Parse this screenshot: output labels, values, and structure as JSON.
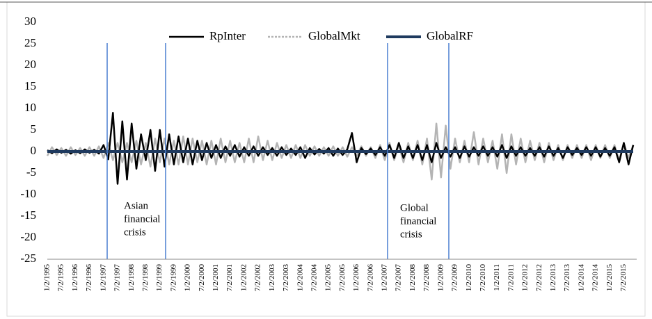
{
  "chart_data": {
    "type": "line",
    "categories": [
      "1/2/1995",
      null,
      null,
      "7/2/1995",
      null,
      null,
      "1/2/1996",
      null,
      null,
      "7/2/1996",
      null,
      null,
      "1/2/1997",
      null,
      null,
      "7/2/1997",
      null,
      null,
      "1/2/1998",
      null,
      null,
      "7/2/1998",
      null,
      null,
      "1/2/1999",
      null,
      null,
      "7/2/1999",
      null,
      null,
      "1/2/2000",
      null,
      null,
      "7/2/2000",
      null,
      null,
      "1/2/2001",
      null,
      null,
      "7/2/2001",
      null,
      null,
      "1/2/2002",
      null,
      null,
      "7/2/2002",
      null,
      null,
      "1/2/2003",
      null,
      null,
      "7/2/2003",
      null,
      null,
      "1/2/2004",
      null,
      null,
      "7/2/2004",
      null,
      null,
      "1/2/2005",
      null,
      null,
      "7/2/2005",
      null,
      null,
      "1/2/2006",
      null,
      null,
      "7/2/2006",
      null,
      null,
      "1/2/2007",
      null,
      null,
      "7/2/2007",
      null,
      null,
      "1/2/2008",
      null,
      null,
      "7/2/2008",
      null,
      null,
      "1/2/2009",
      null,
      null,
      "7/2/2009",
      null,
      null,
      "1/2/2010",
      null,
      null,
      "7/2/2010",
      null,
      null,
      "1/2/2011",
      null,
      null,
      "7/2/2011",
      null,
      null,
      "1/2/2012",
      null,
      null,
      "7/2/2012",
      null,
      null,
      "1/2/2013",
      null,
      null,
      "7/2/2013",
      null,
      null,
      "1/2/2014",
      null,
      null,
      "7/2/2014",
      null,
      null,
      "1/2/2015",
      null,
      null,
      "7/2/2015",
      null,
      null
    ],
    "series": [
      {
        "name": "RpInter",
        "color": "#000000",
        "width": 2.5,
        "style": "solid",
        "values": [
          0.3,
          -0.4,
          0.5,
          -0.3,
          0.4,
          -0.5,
          0.3,
          -0.4,
          0.5,
          -0.3,
          0.4,
          -0.5,
          1.5,
          -1.8,
          9,
          -7.5,
          7,
          -6.5,
          6.5,
          -4,
          4,
          -2,
          5,
          -4.5,
          5,
          -3.5,
          4,
          -3,
          3.5,
          -2.5,
          3,
          -3,
          2.5,
          -2,
          2,
          -1.5,
          1.5,
          -1.5,
          1.2,
          -1,
          1.5,
          -1.2,
          1,
          -1,
          1.2,
          -1,
          1,
          -0.8,
          0.8,
          -1,
          1,
          -0.8,
          0.7,
          -0.8,
          1,
          -1.5,
          0.8,
          -0.7,
          0.6,
          -0.5,
          0.8,
          -1,
          0.7,
          -0.8,
          0.5,
          4.3,
          -2.5,
          0.8,
          -0.6,
          0.7,
          -0.8,
          1,
          -1,
          1.5,
          -1.5,
          2,
          -1.5,
          1.2,
          -1.5,
          1.5,
          -2,
          1.5,
          -2.5,
          2,
          -1.5,
          1,
          -1.2,
          1,
          -1.5,
          1.2,
          -1.2,
          1,
          -1,
          1.2,
          -1,
          1,
          -1.2,
          1.5,
          -1.5,
          1.2,
          -1,
          1,
          -1,
          0.8,
          -1,
          1,
          -1.2,
          1.2,
          -1,
          0.8,
          -1.5,
          1,
          -0.8,
          0.8,
          -0.8,
          1,
          -1,
          1,
          -1.2,
          0.8,
          -1,
          1,
          -2.5,
          2,
          -3,
          1.5
        ]
      },
      {
        "name": "GlobalMkt",
        "color": "#b4b4b4",
        "width": 2.5,
        "style": "dotted",
        "values": [
          -1,
          1,
          -0.8,
          0.8,
          -1,
          1,
          -0.8,
          0.8,
          -1,
          1,
          -1,
          1.2,
          -1.5,
          2,
          -2,
          2,
          -2.5,
          2,
          -2.5,
          2.5,
          -3,
          2,
          -3.5,
          3,
          -2.5,
          3,
          -3,
          2.5,
          -3,
          3.5,
          -3,
          3,
          -2.5,
          2.5,
          -3,
          2.5,
          -3,
          3,
          -2.5,
          2.5,
          -2.5,
          2,
          -2.5,
          3,
          -2.5,
          3.5,
          -2,
          2.5,
          -2,
          2,
          -1.5,
          1.5,
          -1.5,
          1.5,
          -1.5,
          1.5,
          -1,
          1.2,
          -1,
          1,
          -1,
          1.2,
          -1,
          1,
          -1.2,
          1,
          -1,
          1.2,
          -1,
          1,
          -1.5,
          1.5,
          -2,
          2,
          -2,
          1.5,
          -2.5,
          2,
          -2,
          2.5,
          -3,
          3,
          -6.5,
          6.5,
          -6,
          6,
          -4,
          3,
          -2.5,
          2.5,
          -2.5,
          4.5,
          -3,
          3,
          -2.5,
          2.5,
          -4,
          4,
          -5,
          4,
          -3,
          3,
          -2.5,
          2.5,
          -2,
          2,
          -2.5,
          2,
          -2,
          1.5,
          -2,
          1.5,
          -1.5,
          1.5,
          -1.5,
          1.5,
          -2,
          1.5,
          -1.5,
          1.5,
          -1.5,
          1.5,
          -2,
          2,
          -1.5,
          1.5
        ]
      },
      {
        "name": "GlobalRF",
        "color": "#1f3a5f",
        "width": 4,
        "style": "solid",
        "values": [
          0,
          0,
          0,
          0,
          0,
          0,
          0,
          0,
          0,
          0,
          0,
          0,
          0,
          0,
          0,
          0,
          0,
          0,
          0,
          0,
          0,
          0,
          0,
          0,
          0,
          0,
          0,
          0,
          0,
          0,
          0,
          0,
          0,
          0,
          0,
          0,
          0,
          0,
          0,
          0,
          0,
          0,
          0,
          0,
          0,
          0,
          0,
          0,
          0,
          0,
          0,
          0,
          0,
          0,
          0,
          0,
          0,
          0,
          0,
          0,
          0,
          0,
          0,
          0,
          0,
          0,
          0,
          0,
          0,
          0,
          0,
          0,
          0,
          0,
          0,
          0,
          0,
          0,
          0,
          0,
          0,
          0,
          0,
          0,
          0,
          0,
          0,
          0,
          0,
          0,
          0,
          0,
          0,
          0,
          0,
          0,
          0,
          0,
          0,
          0,
          0,
          0,
          0,
          0,
          0,
          0,
          0,
          0,
          0,
          0,
          0,
          0,
          0,
          0,
          0,
          0,
          0,
          0,
          0,
          0,
          0,
          0,
          0,
          0,
          0,
          0
        ]
      }
    ],
    "ylim": [
      -25,
      30
    ],
    "yticks": [
      -25,
      -20,
      -15,
      -10,
      -5,
      0,
      5,
      10,
      15,
      20,
      25,
      30
    ],
    "grid": false,
    "annotations": [
      {
        "lines": [
          "Asian",
          "financial",
          "crisis"
        ]
      },
      {
        "lines": [
          "Global",
          "financial",
          "crisis"
        ]
      }
    ]
  }
}
